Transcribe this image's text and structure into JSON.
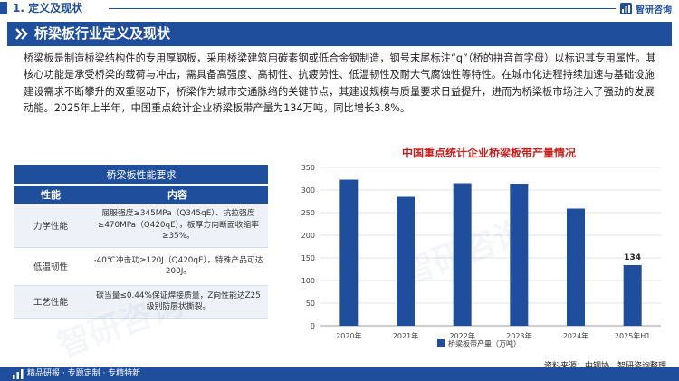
{
  "header": {
    "section_label": "1. 定义及现状",
    "brand_name": "智研咨询"
  },
  "title": "桥梁板行业定义及现状",
  "intro": "桥梁板是制造桥梁结构件的专用厚钢板，采用桥梁建筑用碳素钢或低合金钢制造，钢号末尾标注“q”（桥的拼音首字母）以标识其专用属性。其核心功能是承受桥梁的载荷与冲击，需具备高强度、高韧性、抗疲劳性、低温韧性及耐大气腐蚀性等特性。在城市化进程持续加速与基础设施建设需求不断攀升的双重驱动下，桥梁作为城市交通脉络的关键节点，其建设规模与质量要求日益提升，进而为桥梁板市场注入了强劲的发展动能。2025年上半年，中国重点统计企业桥梁板带产量为134万吨，同比增长3.8%。",
  "table": {
    "caption": "桥梁板性能要求",
    "col_headers": [
      "性能",
      "内容"
    ],
    "rows": [
      {
        "attr": "力学性能",
        "desc": "屈服强度≥345MPa（Q345qE）、抗拉强度≥470MPa（Q420qE），板厚方向断面收缩率≥35%。"
      },
      {
        "attr": "低温韧性",
        "desc": "-40℃冲击功≥120J（Q420qE），特殊产品可达200J。"
      },
      {
        "attr": "工艺性能",
        "desc": "碳当量≤0.44%保证焊接质量，Z向性能达Z25级别防层状撕裂。"
      }
    ]
  },
  "chart_data": {
    "type": "bar",
    "title": "中国重点统计企业桥梁板带产量情况",
    "categories": [
      "2020年",
      "2021年",
      "2022年",
      "2023年",
      "2024年",
      "2025年H1"
    ],
    "series": [
      {
        "name": "桥梁板带产量（万吨）",
        "values": [
          323,
          285,
          315,
          314,
          259,
          134
        ]
      }
    ],
    "data_labels": {
      "2025年H1": "134"
    },
    "ylim": [
      0,
      350
    ],
    "yticks": [
      0,
      50,
      100,
      150,
      200,
      250,
      300,
      350
    ],
    "grid": true,
    "legend": "bottom",
    "bar_color": "#1f4e9c"
  },
  "source": "资料来源：中钢协、智研咨询整理",
  "footer": "精品研报 · 专题定制 · 专精特新",
  "watermark": "智研咨询"
}
